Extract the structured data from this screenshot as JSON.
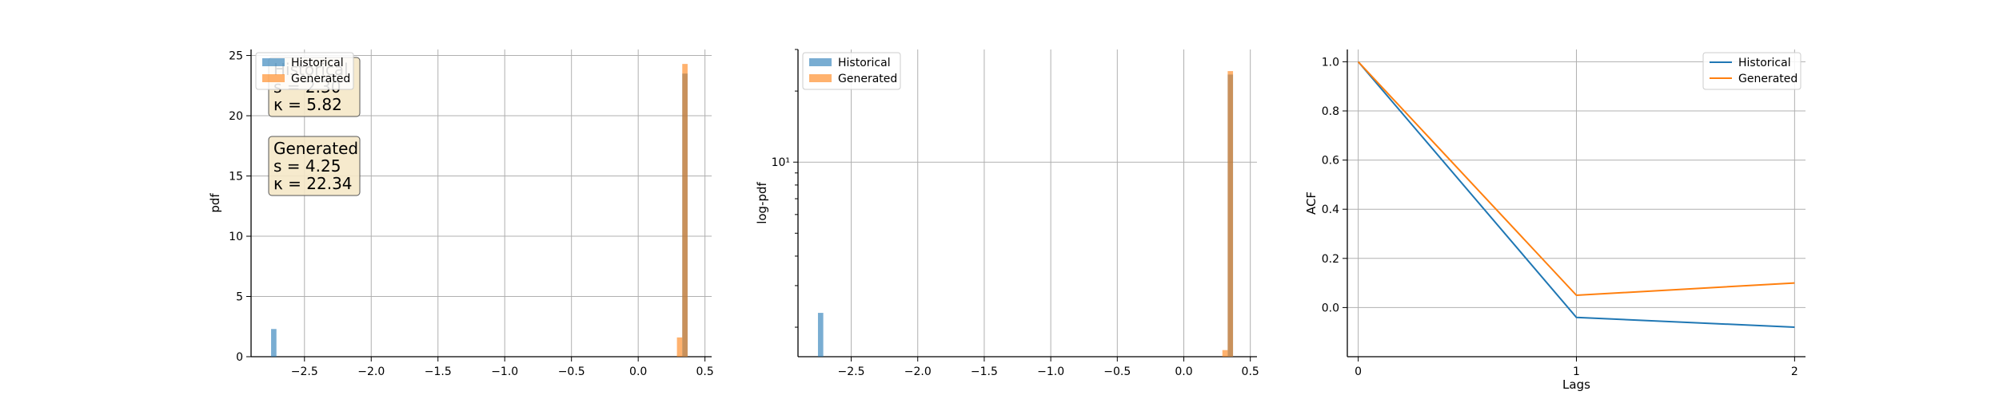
{
  "chart_data": [
    {
      "type": "bar",
      "title": "",
      "xlabel": "",
      "ylabel": "pdf",
      "xlim": [
        -2.9,
        0.55
      ],
      "ylim": [
        0,
        25.5
      ],
      "xticks": [
        -2.5,
        -2.0,
        -1.5,
        -1.0,
        -0.5,
        0.0,
        0.5
      ],
      "xtick_labels": [
        "−2.5",
        "−2.0",
        "−1.5",
        "−1.0",
        "−0.5",
        "0.0",
        "0.5"
      ],
      "yticks": [
        0,
        5,
        10,
        15,
        20,
        25
      ],
      "ytick_labels": [
        "0",
        "5",
        "10",
        "15",
        "20",
        "25"
      ],
      "grid": true,
      "legend": {
        "placement": "top-left",
        "entries": [
          "Historical",
          "Generated"
        ]
      },
      "series": [
        {
          "name": "Historical",
          "color": "#1f77b4",
          "bars": [
            {
              "x0": -2.75,
              "x1": -2.71,
              "value": 2.3
            },
            {
              "x0": 0.33,
              "x1": 0.37,
              "value": 23.5
            }
          ]
        },
        {
          "name": "Generated",
          "color": "#ff7f0e",
          "bars": [
            {
              "x0": 0.29,
              "x1": 0.33,
              "value": 1.6
            },
            {
              "x0": 0.33,
              "x1": 0.37,
              "value": 24.3
            }
          ]
        }
      ],
      "stat_boxes": [
        {
          "name": "Historical",
          "lines": [
            "Historical",
            "s = 2.30",
            "κ = 5.82"
          ]
        },
        {
          "name": "Generated",
          "lines": [
            "Generated",
            "s = 4.25",
            "κ = 22.34"
          ]
        }
      ]
    },
    {
      "type": "bar",
      "title": "",
      "xlabel": "",
      "ylabel": "log-pdf",
      "yscale": "log",
      "xlim": [
        -2.9,
        0.55
      ],
      "ylim": [
        1.5,
        30
      ],
      "xticks": [
        -2.5,
        -2.0,
        -1.5,
        -1.0,
        -0.5,
        0.0,
        0.5
      ],
      "xtick_labels": [
        "−2.5",
        "−2.0",
        "−1.5",
        "−1.0",
        "−0.5",
        "0.0",
        "0.5"
      ],
      "yticks": [
        10
      ],
      "ytick_labels": [
        "10¹"
      ],
      "grid": true,
      "legend": {
        "placement": "top-left",
        "entries": [
          "Historical",
          "Generated"
        ]
      },
      "series": [
        {
          "name": "Historical",
          "color": "#1f77b4",
          "bars": [
            {
              "x0": -2.75,
              "x1": -2.71,
              "value": 2.3
            },
            {
              "x0": 0.33,
              "x1": 0.37,
              "value": 23.5
            }
          ]
        },
        {
          "name": "Generated",
          "color": "#ff7f0e",
          "bars": [
            {
              "x0": 0.29,
              "x1": 0.33,
              "value": 1.6
            },
            {
              "x0": 0.33,
              "x1": 0.37,
              "value": 24.3
            }
          ]
        }
      ]
    },
    {
      "type": "line",
      "title": "",
      "xlabel": "Lags",
      "ylabel": "ACF",
      "xlim": [
        -0.05,
        2.05
      ],
      "ylim": [
        -0.2,
        1.05
      ],
      "xticks": [
        0,
        1,
        2
      ],
      "xtick_labels": [
        "0",
        "1",
        "2"
      ],
      "yticks": [
        0.0,
        0.2,
        0.4,
        0.6,
        0.8,
        1.0
      ],
      "ytick_labels": [
        "0.0",
        "0.2",
        "0.4",
        "0.6",
        "0.8",
        "1.0"
      ],
      "grid": true,
      "legend": {
        "placement": "top-right",
        "entries": [
          "Historical",
          "Generated"
        ]
      },
      "x": [
        0,
        1,
        2
      ],
      "series": [
        {
          "name": "Historical",
          "color": "#1f77b4",
          "values": [
            1.0,
            -0.04,
            -0.08
          ]
        },
        {
          "name": "Generated",
          "color": "#ff7f0e",
          "values": [
            1.0,
            0.05,
            0.1
          ]
        }
      ]
    }
  ]
}
